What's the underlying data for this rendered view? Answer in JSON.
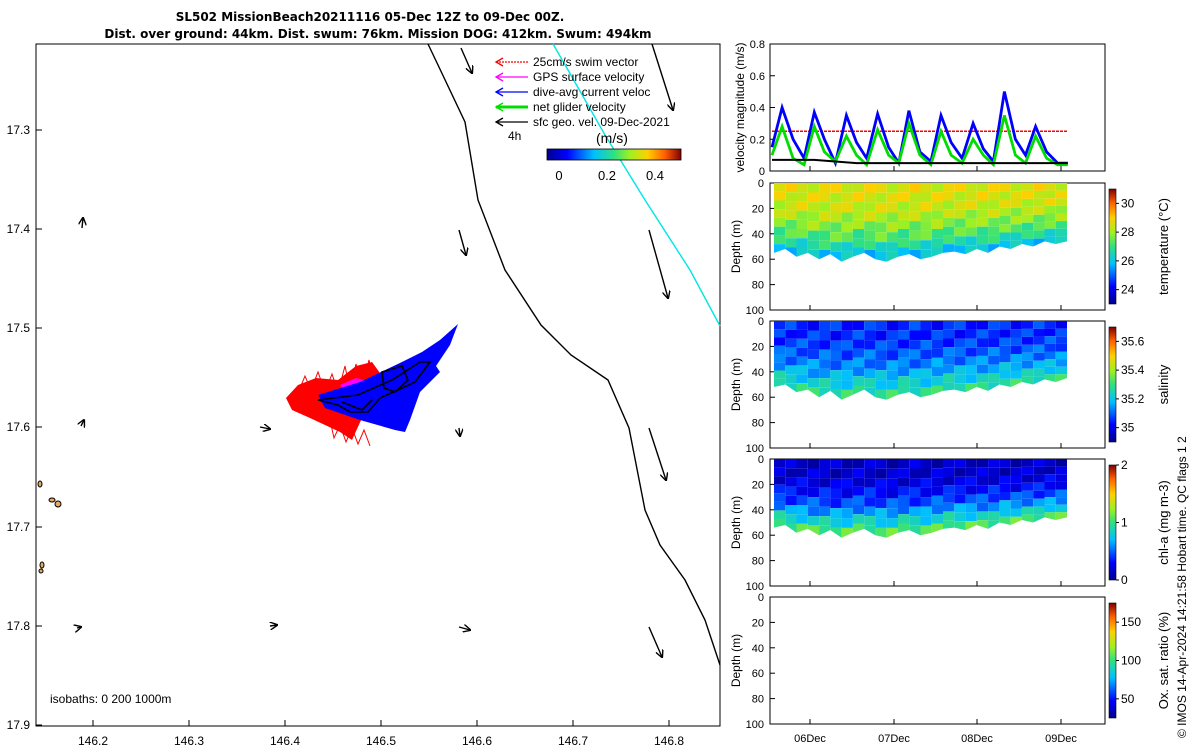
{
  "title_lines": [
    "SL502 MissionBeach20211116 05-Dec 12Z to 09-Dec 00Z.",
    "Dist. over ground: 44km. Dist. swum: 76km. Mission DOG: 412km. Swum: 494km"
  ],
  "map": {
    "x_ticks": [
      "146.2",
      "146.3",
      "146.4",
      "146.5",
      "146.6",
      "146.7",
      "146.8"
    ],
    "y_ticks": [
      "17.3",
      "17.4",
      "17.5",
      "17.6",
      "17.7",
      "17.8",
      "17.9"
    ],
    "legend": [
      {
        "label": "25cm/s swim vector",
        "color": "#ff0000"
      },
      {
        "label": "GPS surface velocity",
        "color": "#ff00ff"
      },
      {
        "label": "dive-avg current veloc",
        "color": "#0000ff"
      },
      {
        "label": "net glider velocity",
        "color": "#00dd00"
      },
      {
        "label": "sfc geo. vel. 09-Dec-2021",
        "color": "#000000"
      }
    ],
    "duration_label": "4h",
    "colorbar_unit": "(m/s)",
    "colorbar_ticks": [
      "0",
      "0.2",
      "0.4"
    ],
    "isobaths_label": "isobaths: 0   200  1000m"
  },
  "chart_data": [
    {
      "type": "line",
      "ylabel": "velocity magnitude (m/s)",
      "ylim": [
        0,
        0.8
      ],
      "y_ticks": [
        "0",
        "0.2",
        "0.4",
        "0.6",
        "0.8"
      ],
      "x_ticks": [
        "06Dec",
        "07Dec",
        "08Dec",
        "09Dec"
      ],
      "series": [
        {
          "color": "#ff0000",
          "x": [
            0,
            3.5
          ],
          "values": [
            0.25,
            0.25
          ]
        },
        {
          "color": "#0000ff",
          "x": [
            0,
            0.12,
            0.25,
            0.38,
            0.5,
            0.62,
            0.75,
            0.88,
            1.0,
            1.12,
            1.25,
            1.38,
            1.5,
            1.62,
            1.75,
            1.88,
            2.0,
            2.12,
            2.25,
            2.38,
            2.5,
            2.62,
            2.75,
            2.88,
            3.0,
            3.12,
            3.25,
            3.38,
            3.5
          ],
          "values": [
            0.15,
            0.4,
            0.2,
            0.08,
            0.37,
            0.2,
            0.05,
            0.35,
            0.18,
            0.08,
            0.36,
            0.15,
            0.05,
            0.38,
            0.12,
            0.06,
            0.35,
            0.18,
            0.08,
            0.3,
            0.14,
            0.06,
            0.5,
            0.2,
            0.1,
            0.28,
            0.12,
            0.05,
            0.05
          ]
        },
        {
          "color": "#00dd00",
          "x": [
            0,
            0.12,
            0.25,
            0.38,
            0.5,
            0.62,
            0.75,
            0.88,
            1.0,
            1.12,
            1.25,
            1.38,
            1.5,
            1.62,
            1.75,
            1.88,
            2.0,
            2.12,
            2.25,
            2.38,
            2.5,
            2.62,
            2.75,
            2.88,
            3.0,
            3.12,
            3.25,
            3.38,
            3.5
          ],
          "values": [
            0.1,
            0.28,
            0.08,
            0.04,
            0.28,
            0.12,
            0.06,
            0.22,
            0.1,
            0.04,
            0.26,
            0.1,
            0.05,
            0.3,
            0.1,
            0.04,
            0.25,
            0.1,
            0.05,
            0.2,
            0.1,
            0.04,
            0.35,
            0.1,
            0.05,
            0.22,
            0.08,
            0.04,
            0.04
          ]
        },
        {
          "color": "#000000",
          "x": [
            0,
            0.5,
            1.0,
            1.5,
            2.0,
            2.5,
            3.0,
            3.5
          ],
          "values": [
            0.07,
            0.07,
            0.05,
            0.05,
            0.05,
            0.05,
            0.05,
            0.05
          ]
        }
      ]
    },
    {
      "type": "heatmap",
      "ylabel": "Depth (m)",
      "clabel": "temperature (°C)",
      "ylim": [
        100,
        0
      ],
      "y_ticks": [
        "0",
        "20",
        "40",
        "60",
        "80",
        "100"
      ],
      "c_ticks": [
        "24",
        "26",
        "28",
        "30"
      ],
      "clim": [
        23,
        31
      ],
      "bottom_depth": [
        55,
        52,
        58,
        55,
        60,
        56,
        62,
        58,
        55,
        60,
        62,
        58,
        56,
        60,
        58,
        55,
        54,
        56,
        52,
        55,
        50,
        52,
        48,
        50,
        46,
        48,
        46
      ],
      "top_value": 28.6,
      "bottom_value": 26.0
    },
    {
      "type": "heatmap",
      "ylabel": "Depth (m)",
      "clabel": "salinity",
      "ylim": [
        100,
        0
      ],
      "y_ticks": [
        "0",
        "20",
        "40",
        "60",
        "80",
        "100"
      ],
      "c_ticks": [
        "35",
        "35.2",
        "35.4",
        "35.6"
      ],
      "clim": [
        34.9,
        35.7
      ],
      "bottom_depth": [
        52,
        50,
        56,
        54,
        60,
        55,
        62,
        58,
        54,
        60,
        62,
        58,
        56,
        60,
        58,
        55,
        54,
        56,
        52,
        55,
        50,
        52,
        48,
        50,
        46,
        48,
        45
      ],
      "top_value": 35.05,
      "bottom_value": 35.28
    },
    {
      "type": "heatmap",
      "ylabel": "Depth (m)",
      "clabel": "chl-a (mg m-3)",
      "ylim": [
        100,
        0
      ],
      "y_ticks": [
        "0",
        "20",
        "40",
        "60",
        "80",
        "100"
      ],
      "c_ticks": [
        "0",
        "1",
        "2"
      ],
      "clim": [
        0,
        2
      ],
      "bottom_depth": [
        54,
        52,
        58,
        55,
        60,
        56,
        62,
        58,
        55,
        60,
        62,
        58,
        56,
        60,
        58,
        55,
        54,
        56,
        52,
        55,
        50,
        52,
        48,
        50,
        46,
        48,
        46
      ],
      "top_value": 0.15,
      "bottom_value": 1.05
    },
    {
      "type": "heatmap",
      "ylabel": "Depth (m)",
      "clabel": "Ox. sat. ratio (%)",
      "ylim": [
        100,
        0
      ],
      "y_ticks": [
        "0",
        "20",
        "40",
        "60",
        "80",
        "100"
      ],
      "c_ticks": [
        "50",
        "100",
        "150"
      ],
      "clim": [
        25,
        175
      ],
      "bottom_depth": [],
      "x_ticks": [
        "06Dec",
        "07Dec",
        "08Dec",
        "09Dec"
      ]
    }
  ],
  "footer": "© IMOS 14-Apr-2024 14:21:58 Hobart time. QC flags 1  2"
}
